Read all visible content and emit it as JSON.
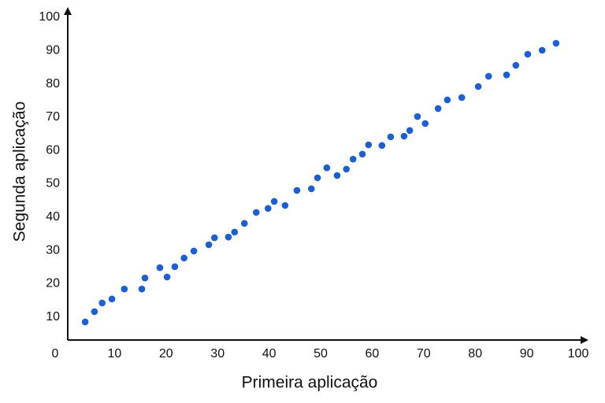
{
  "chart_data": {
    "type": "scatter",
    "x_label": "Primeira aplicação",
    "y_label": "Segunda aplicação",
    "xlim": [
      0,
      100
    ],
    "ylim": [
      0,
      100
    ],
    "xticks": [
      0,
      10,
      20,
      30,
      40,
      50,
      60,
      70,
      80,
      90,
      100
    ],
    "yticks": [
      10,
      20,
      30,
      40,
      50,
      60,
      70,
      80,
      90,
      100
    ],
    "color": "#1a5fd6",
    "x": [
      4.3,
      6.1,
      7.6,
      9.5,
      11.9,
      15.3,
      15.9,
      18.8,
      20.2,
      21.7,
      23.5,
      25.4,
      28.3,
      29.4,
      32.1,
      33.3,
      35.2,
      37.5,
      39.8,
      41.0,
      43.1,
      45.4,
      48.2,
      49.4,
      51.2,
      53.2,
      55.0,
      56.3,
      58.1,
      59.3,
      61.9,
      63.6,
      66.2,
      67.3,
      68.8,
      70.3,
      72.8,
      74.6,
      77.4,
      80.6,
      82.6,
      86.1,
      87.9,
      90.2,
      93.0,
      95.7
    ],
    "values": [
      8.5,
      11.6,
      14.2,
      15.4,
      18.4,
      18.4,
      21.7,
      24.8,
      22.0,
      25.1,
      27.7,
      29.8,
      31.7,
      33.8,
      34.0,
      35.5,
      38.1,
      41.4,
      42.6,
      44.7,
      43.5,
      48.0,
      48.5,
      51.8,
      54.8,
      52.5,
      54.4,
      57.4,
      58.9,
      61.7,
      61.5,
      64.1,
      64.3,
      66.0,
      70.2,
      68.1,
      72.6,
      75.2,
      75.9,
      79.2,
      82.3,
      82.7,
      85.6,
      88.9,
      90.1,
      92.2
    ]
  }
}
